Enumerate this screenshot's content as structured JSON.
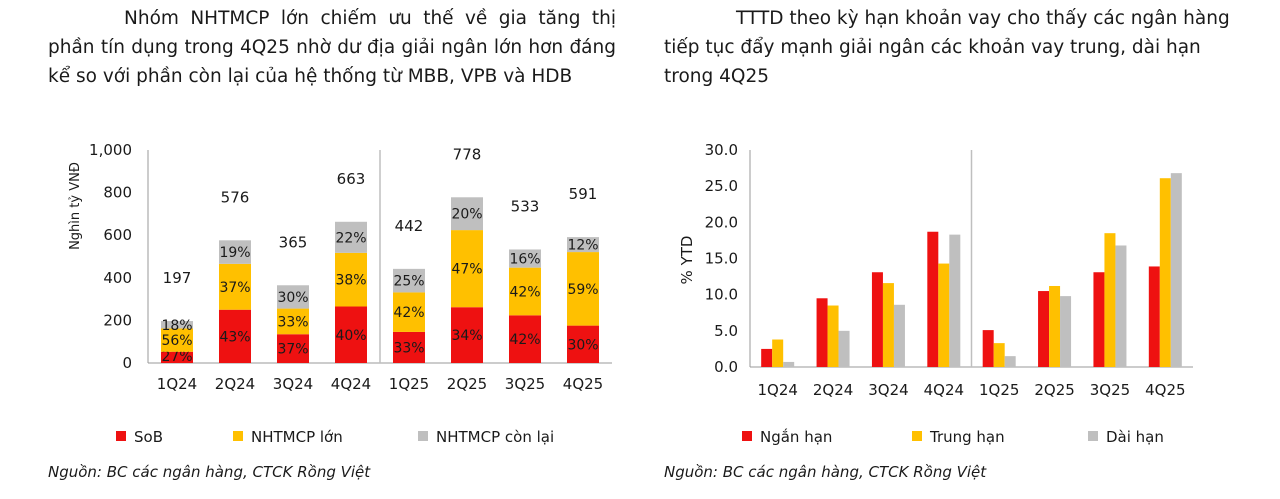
{
  "colors": {
    "sob": "#ee1111",
    "large": "#ffc000",
    "rest": "#bfbfbf",
    "divider": "#bfbfbf",
    "axis": "#999999"
  },
  "left": {
    "heading": "Nhóm NHTMCP lớn chiếm ưu thế về gia tăng thị phần tín dụng trong 4Q25 nhờ dư địa giải ngân lớn hơn đáng kể so với phần còn lại của hệ thống từ MBB, VPB và HDB",
    "source": "Nguồn: BC các ngân hàng, CTCK Rồng Việt"
  },
  "right": {
    "heading": "TTTD theo kỳ hạn khoản vay cho thấy các ngân hàng tiếp tục đẩy mạnh giải ngân các khoản vay trung, dài hạn trong 4Q25",
    "source": "Nguồn: BC các ngân hàng, CTCK Rồng Việt"
  },
  "chart_data": [
    {
      "type": "bar",
      "stacked": true,
      "ylabel": "Nghìn tỷ VNĐ",
      "ylim": [
        0,
        1000
      ],
      "yticks": [
        "0",
        "200",
        "400",
        "600",
        "800",
        "1,000"
      ],
      "ytick_values": [
        0,
        200,
        400,
        600,
        800,
        1000
      ],
      "categories": [
        "1Q24",
        "2Q24",
        "3Q24",
        "4Q24",
        "1Q25",
        "2Q25",
        "3Q25",
        "4Q25"
      ],
      "totals": [
        197,
        576,
        365,
        663,
        442,
        778,
        533,
        591
      ],
      "total_labels": [
        "197",
        "576",
        "365",
        "663",
        "442",
        "778",
        "533",
        "591"
      ],
      "series": [
        {
          "name": "SoB",
          "shares": [
            27,
            43,
            37,
            40,
            33,
            34,
            42,
            30
          ],
          "labels": [
            "27%",
            "43%",
            "37%",
            "40%",
            "33%",
            "34%",
            "42%",
            "30%"
          ]
        },
        {
          "name": "NHTMCP lớn",
          "shares": [
            56,
            37,
            33,
            38,
            42,
            47,
            42,
            59
          ],
          "labels": [
            "56%",
            "37%",
            "33%",
            "38%",
            "42%",
            "47%",
            "42%",
            "59%"
          ]
        },
        {
          "name": "NHTMCP còn lại",
          "shares": [
            18,
            19,
            30,
            22,
            25,
            20,
            16,
            12
          ],
          "labels": [
            "18%",
            "19%",
            "30%",
            "22%",
            "25%",
            "20%",
            "16%",
            "12%"
          ]
        }
      ],
      "legend": [
        "SoB",
        "NHTMCP lớn",
        "NHTMCP còn lại"
      ],
      "legend_position": "bottom",
      "grid": false
    },
    {
      "type": "bar",
      "ylabel": "% YTD",
      "ylim": [
        0,
        30
      ],
      "yticks": [
        "0.0",
        "5.0",
        "10.0",
        "15.0",
        "20.0",
        "25.0",
        "30.0"
      ],
      "ytick_values": [
        0,
        5,
        10,
        15,
        20,
        25,
        30
      ],
      "categories": [
        "1Q24",
        "2Q24",
        "3Q24",
        "4Q24",
        "1Q25",
        "2Q25",
        "3Q25",
        "4Q25"
      ],
      "series": [
        {
          "name": "Ngắn hạn",
          "values": [
            2.5,
            9.5,
            13.1,
            18.7,
            5.1,
            10.5,
            13.1,
            13.9
          ]
        },
        {
          "name": "Trung hạn",
          "values": [
            3.8,
            8.5,
            11.6,
            14.3,
            3.3,
            11.2,
            18.5,
            26.1
          ]
        },
        {
          "name": "Dài hạn",
          "values": [
            0.7,
            5.0,
            8.6,
            18.3,
            1.5,
            9.8,
            16.8,
            26.8
          ]
        }
      ],
      "legend": [
        "Ngắn hạn",
        "Trung hạn",
        "Dài hạn"
      ],
      "legend_position": "bottom",
      "grid": false
    }
  ]
}
